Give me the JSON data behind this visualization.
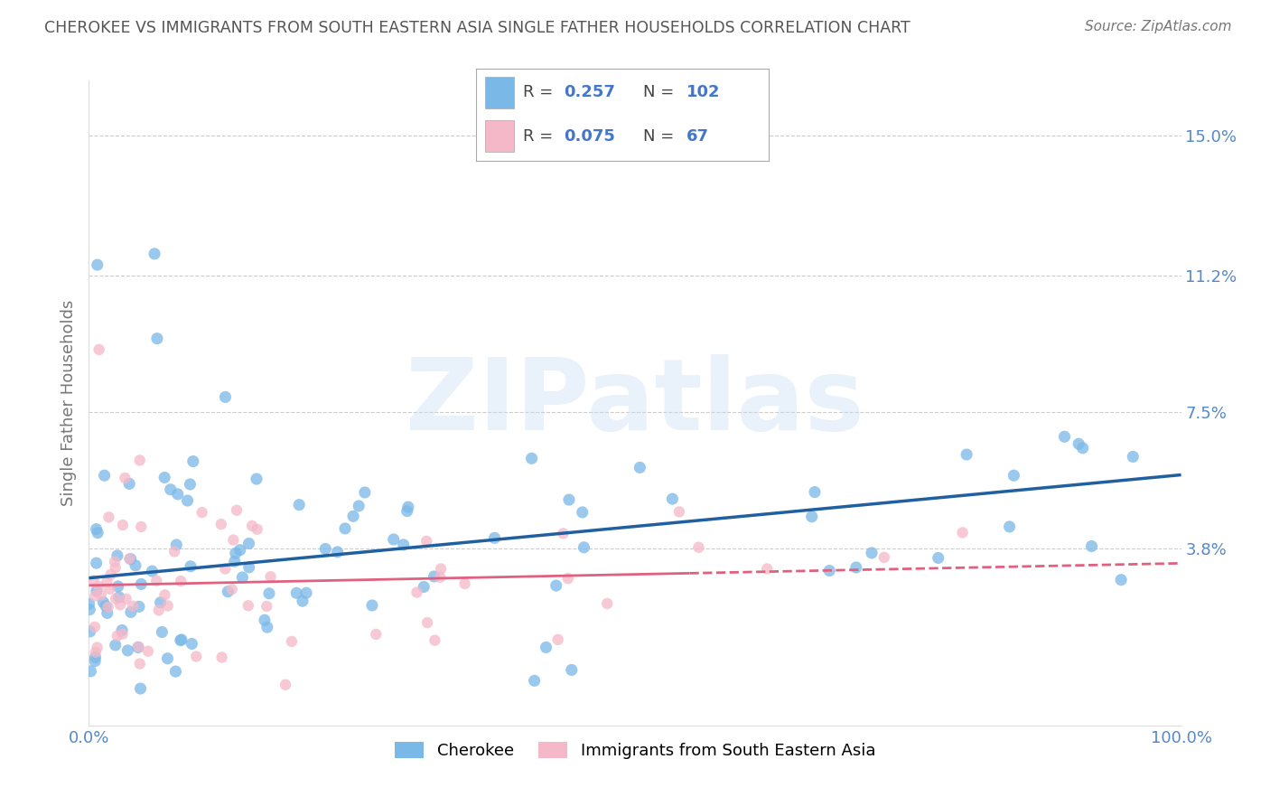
{
  "title": "CHEROKEE VS IMMIGRANTS FROM SOUTH EASTERN ASIA SINGLE FATHER HOUSEHOLDS CORRELATION CHART",
  "source": "Source: ZipAtlas.com",
  "ylabel": "Single Father Households",
  "xlim": [
    0,
    100
  ],
  "ylim": [
    -1.0,
    16.5
  ],
  "yticks": [
    3.8,
    7.5,
    11.2,
    15.0
  ],
  "ytick_labels": [
    "3.8%",
    "7.5%",
    "11.2%",
    "15.0%"
  ],
  "xtick_labels": [
    "0.0%",
    "100.0%"
  ],
  "blue_color": "#7ab8e8",
  "pink_color": "#f5b8c8",
  "blue_line_color": "#2060a0",
  "pink_line_color": "#e06080",
  "legend_R1": "0.257",
  "legend_N1": "102",
  "legend_R2": "0.075",
  "legend_N2": "67",
  "legend_label1": "Cherokee",
  "legend_label2": "Immigrants from South Eastern Asia",
  "watermark": "ZIPatlas",
  "blue_N": 102,
  "pink_N": 67,
  "blue_intercept": 3.0,
  "blue_slope": 0.028,
  "pink_intercept": 2.8,
  "pink_slope": 0.006,
  "background_color": "#ffffff",
  "grid_color": "#cccccc",
  "title_color": "#555555",
  "axis_label_color": "#777777",
  "tick_color": "#5588cc",
  "legend_value_color": "#4477cc"
}
